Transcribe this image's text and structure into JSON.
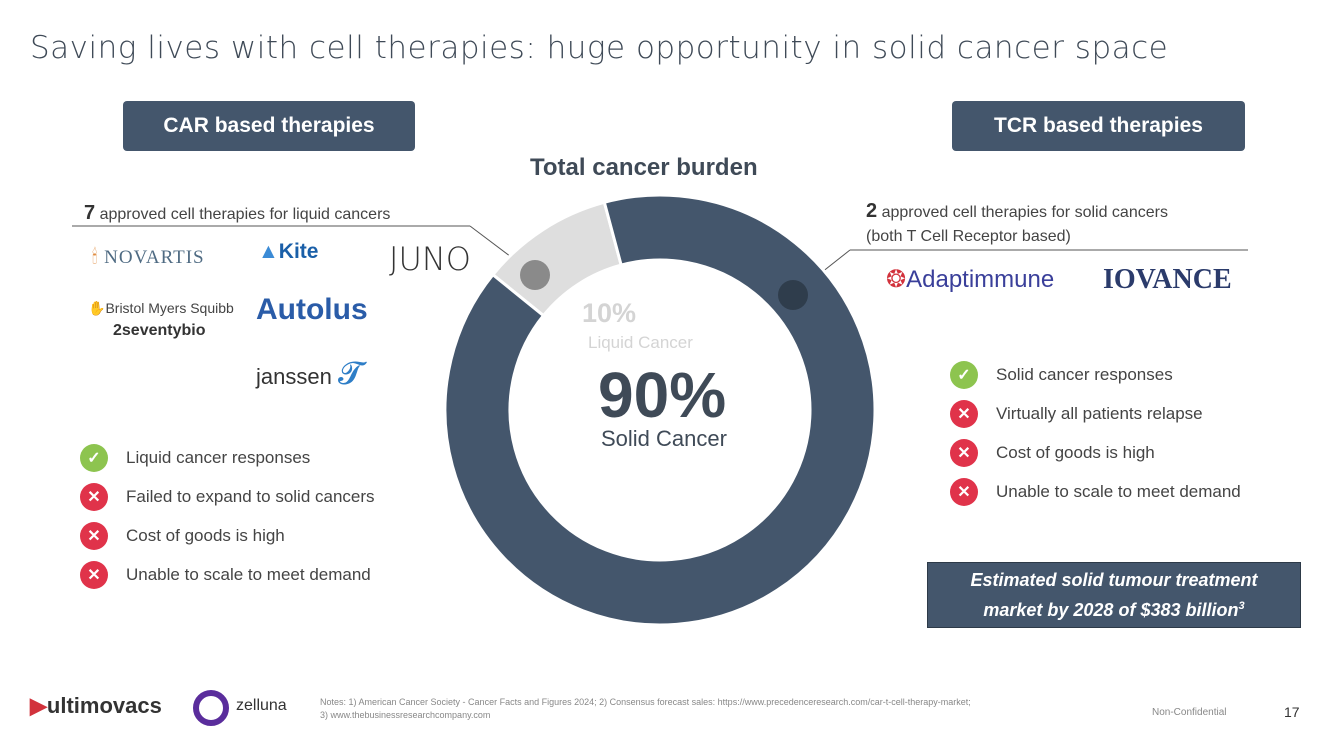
{
  "title": "Saving lives with cell therapies: huge opportunity in solid cancer space",
  "car": {
    "header": "CAR based therapies",
    "count": "7",
    "subtitle": "approved cell therapies for liquid cancers",
    "logos": [
      "NOVARTIS",
      "Kite",
      "JUNO",
      "Bristol Myers Squibb",
      "2seventybio",
      "Autolus",
      "janssen"
    ],
    "items": [
      {
        "icon": "check-icon",
        "text": "Liquid cancer responses"
      },
      {
        "icon": "x-icon",
        "text": "Failed to expand to solid cancers"
      },
      {
        "icon": "x-icon",
        "text": "Cost of goods is high"
      },
      {
        "icon": "x-icon",
        "text": "Unable to scale to meet demand"
      }
    ]
  },
  "tcr": {
    "header": "TCR based therapies",
    "count": "2",
    "subtitle": "approved cell therapies for solid cancers",
    "subtitle2": "(both T Cell Receptor based)",
    "logos": [
      "Adaptimmune",
      "IOVANCE"
    ],
    "items": [
      {
        "icon": "check-icon",
        "text": "Solid cancer responses"
      },
      {
        "icon": "x-icon",
        "text": "Virtually all patients relapse"
      },
      {
        "icon": "x-icon",
        "text": "Cost of goods is high"
      },
      {
        "icon": "x-icon",
        "text": "Unable to scale to meet demand"
      }
    ]
  },
  "market": {
    "line1": "Estimated solid tumour treatment",
    "line2": "market by 2028 of $383 billion",
    "sup": "3"
  },
  "chart_data": {
    "type": "pie",
    "donut": true,
    "title": "Total cancer burden",
    "slices": [
      {
        "label": "Liquid Cancer",
        "value": 10,
        "display": "10%",
        "color": "#dedede"
      },
      {
        "label": "Solid Cancer",
        "value": 90,
        "display": "90%",
        "color": "#44566c"
      }
    ]
  },
  "footer": {
    "logo1": "ultimovacs",
    "logo2": "zelluna",
    "notes1": "Notes: 1) American Cancer Society - Cancer Facts and Figures 2024; 2) Consensus forecast sales: https://www.precedenceresearch.com/car-t-cell-therapy-market;",
    "notes2": "3) www.thebusinessresearchcompany.com",
    "confidential": "Non-Confidential",
    "page": "17"
  }
}
